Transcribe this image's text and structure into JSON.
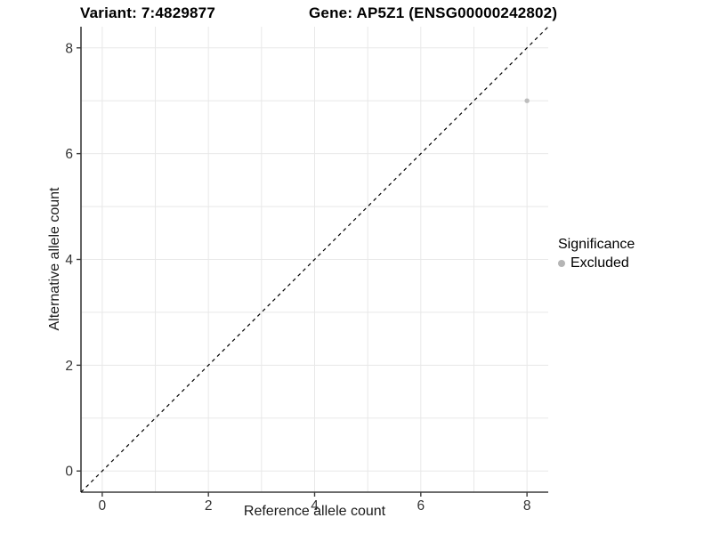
{
  "titles": {
    "variant": "Variant: 7:4829877",
    "gene": "Gene: AP5Z1 (ENSG00000242802)"
  },
  "legend": {
    "title": "Significance",
    "items": [
      {
        "label": "Excluded",
        "color": "#b5b5b5"
      }
    ]
  },
  "colors": {
    "grid": "#e8e8e8",
    "axis_line": "#3c3c3c",
    "tick_text": "#333333",
    "reference_line": "#000000",
    "point": "#bdbdbd",
    "background": "#ffffff"
  },
  "chart_data": {
    "type": "scatter",
    "title": "Variant: 7:4829877   Gene: AP5Z1 (ENSG00000242802)",
    "xlabel": "Reference allele count",
    "ylabel": "Alternative allele count",
    "xlim": [
      -0.4,
      8.4
    ],
    "ylim": [
      -0.4,
      8.4
    ],
    "x_ticks": [
      0,
      2,
      4,
      6,
      8
    ],
    "y_ticks": [
      0,
      2,
      4,
      6,
      8
    ],
    "grid_lines": [
      0,
      1,
      2,
      3,
      4,
      5,
      6,
      7,
      8
    ],
    "grid": true,
    "legend_position": "right",
    "legend_title": "Significance",
    "reference_line": {
      "kind": "identity y=x",
      "style": "dashed",
      "color": "#000000"
    },
    "series": [
      {
        "name": "Excluded",
        "color": "#bdbdbd",
        "points": [
          {
            "x": 8,
            "y": 7
          }
        ]
      }
    ]
  }
}
